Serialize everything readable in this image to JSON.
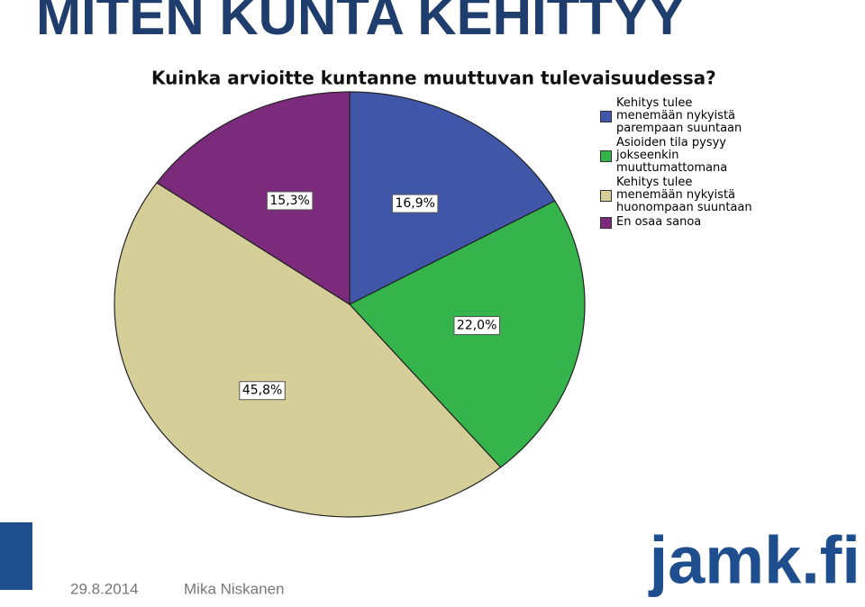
{
  "slide_title": "MITEN KUNTA KEHITTYY",
  "chart_data": {
    "type": "pie",
    "title": "Kuinka arvioitte kuntanne muuttuvan tulevaisuudessa?",
    "categories": [
      "Kehitys tulee menemään nykyistä parempaan suuntaan",
      "Asioiden tila pysyy jokseenkin muuttumattomana",
      "Kehitys tulee menemään nykyistä huonompaan suuntaan",
      "En osaa sanoa"
    ],
    "values": [
      16.9,
      22.0,
      45.8,
      15.3
    ],
    "value_labels": [
      "16,9%",
      "22,0%",
      "45,8%",
      "15,3%"
    ],
    "colors": [
      "#3f56a9",
      "#34b44a",
      "#d5ce98",
      "#7b2a7c"
    ]
  },
  "footer": {
    "date": "29.8.2014",
    "author": "Mika Niskanen"
  },
  "logo": "jamk.fi"
}
